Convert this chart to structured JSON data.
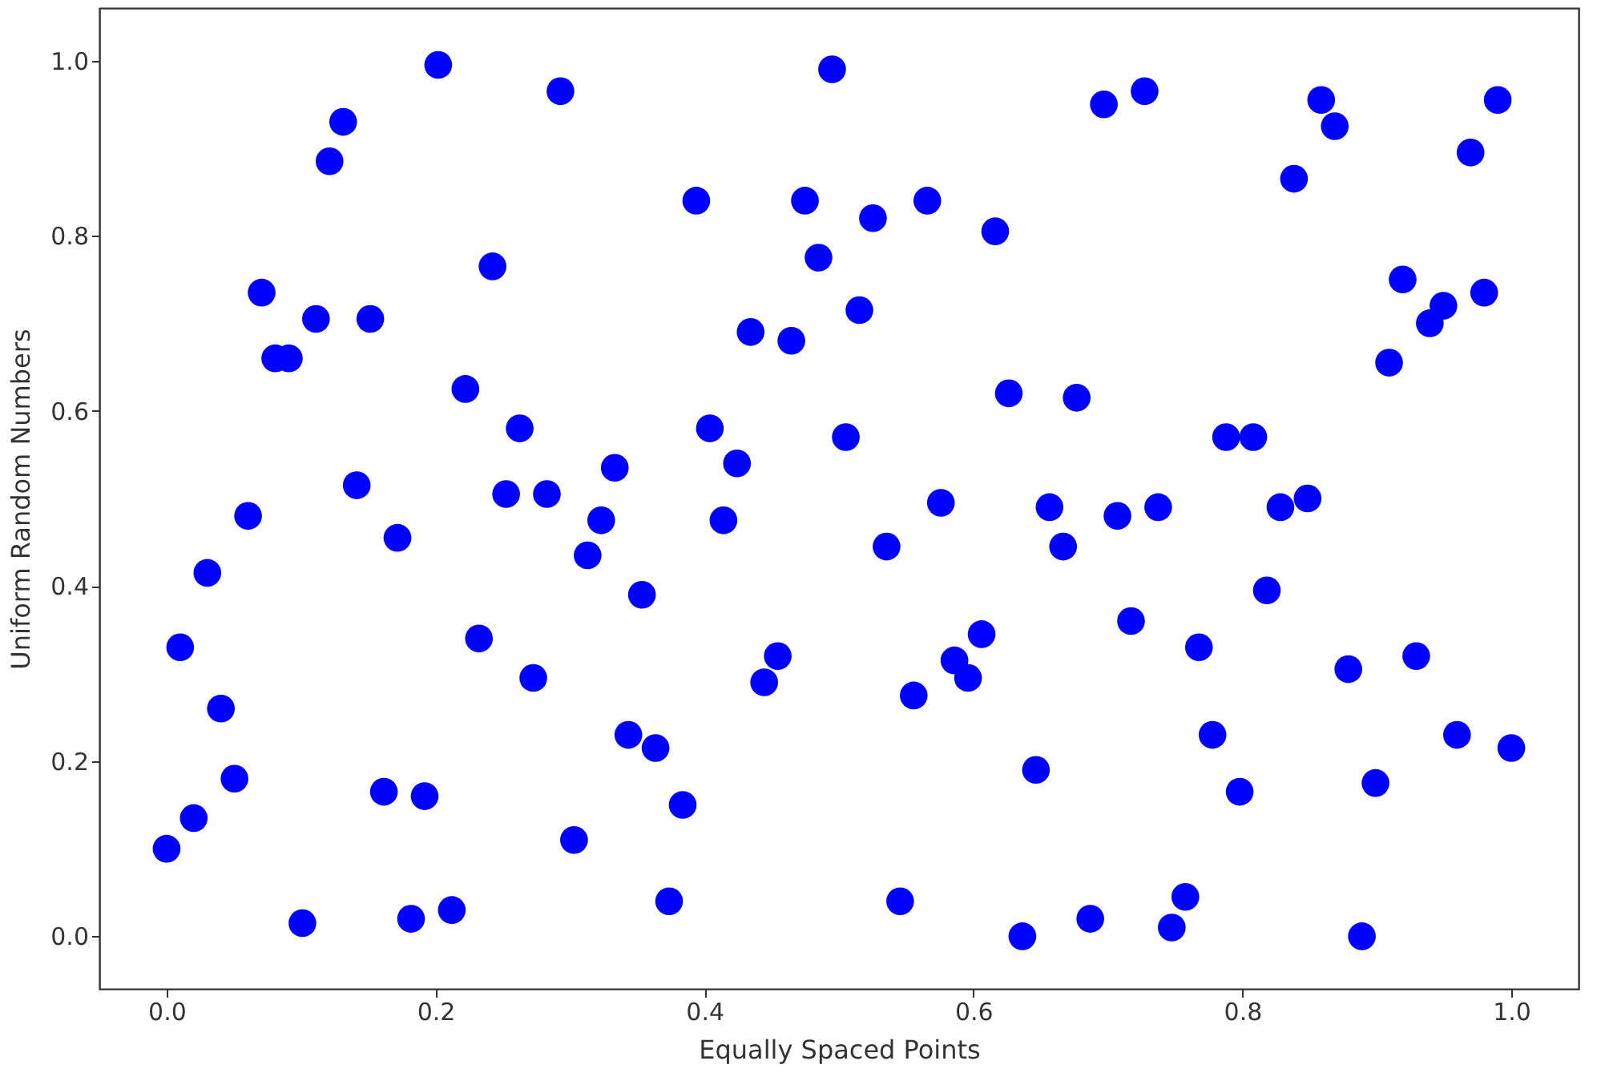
{
  "chart_data": {
    "type": "scatter",
    "xlabel": "Equally Spaced Points",
    "ylabel": "Uniform Random Numbers",
    "x": [
      0.0,
      0.0101,
      0.0202,
      0.0303,
      0.0404,
      0.0505,
      0.0606,
      0.0707,
      0.0808,
      0.0909,
      0.101,
      0.1111,
      0.1212,
      0.1313,
      0.1414,
      0.1515,
      0.1616,
      0.1717,
      0.1818,
      0.1919,
      0.202,
      0.2121,
      0.2222,
      0.2323,
      0.2424,
      0.2525,
      0.2626,
      0.2727,
      0.2828,
      0.2929,
      0.303,
      0.3131,
      0.3232,
      0.3333,
      0.3434,
      0.3535,
      0.3636,
      0.3737,
      0.3838,
      0.3939,
      0.404,
      0.4141,
      0.4242,
      0.4343,
      0.4444,
      0.4545,
      0.4646,
      0.4747,
      0.4848,
      0.4949,
      0.5051,
      0.5152,
      0.5253,
      0.5354,
      0.5455,
      0.5556,
      0.5657,
      0.5758,
      0.5859,
      0.596,
      0.6061,
      0.6162,
      0.6263,
      0.6364,
      0.6465,
      0.6566,
      0.6667,
      0.6768,
      0.6869,
      0.697,
      0.7071,
      0.7172,
      0.7273,
      0.7374,
      0.7475,
      0.7576,
      0.7677,
      0.7778,
      0.7879,
      0.798,
      0.8081,
      0.8182,
      0.8283,
      0.8384,
      0.8485,
      0.8586,
      0.8687,
      0.8788,
      0.8889,
      0.899,
      0.9091,
      0.9192,
      0.9293,
      0.9394,
      0.9495,
      0.9596,
      0.9697,
      0.9798,
      0.9899,
      1.0
    ],
    "series": [
      {
        "color": "#0000ff",
        "values": [
          0.1,
          0.33,
          0.135,
          0.415,
          0.26,
          0.18,
          0.48,
          0.735,
          0.66,
          0.66,
          0.015,
          0.705,
          0.885,
          0.93,
          0.515,
          0.705,
          0.165,
          0.455,
          0.02,
          0.16,
          0.995,
          0.03,
          0.625,
          0.34,
          0.765,
          0.505,
          0.58,
          0.295,
          0.505,
          0.965,
          0.11,
          0.435,
          0.475,
          0.535,
          0.23,
          0.39,
          0.215,
          0.04,
          0.15,
          0.84,
          0.58,
          0.475,
          0.54,
          0.69,
          0.29,
          0.32,
          0.68,
          0.84,
          0.775,
          0.99,
          0.57,
          0.715,
          0.82,
          0.445,
          0.04,
          0.275,
          0.84,
          0.495,
          0.315,
          0.295,
          0.345,
          0.805,
          0.62,
          0.0,
          0.19,
          0.49,
          0.445,
          0.615,
          0.02,
          0.95,
          0.48,
          0.36,
          0.965,
          0.49,
          0.01,
          0.045,
          0.33,
          0.23,
          0.57,
          0.165,
          0.57,
          0.395,
          0.49,
          0.865,
          0.5,
          0.955,
          0.925,
          0.305,
          0.0,
          0.175,
          0.655,
          0.75,
          0.32,
          0.7,
          0.72,
          0.23,
          0.895,
          0.735,
          0.955,
          0.215
        ]
      }
    ],
    "xlim": [
      -0.05,
      1.05
    ],
    "ylim": [
      -0.06,
      1.06
    ],
    "xticks": [
      {
        "value": 0,
        "label": "0.0"
      },
      {
        "value": 0.2,
        "label": "0.2"
      },
      {
        "value": 0.4,
        "label": "0.4"
      },
      {
        "value": 0.6,
        "label": "0.6"
      },
      {
        "value": 0.8,
        "label": "0.8"
      },
      {
        "value": 1,
        "label": "1.0"
      }
    ],
    "yticks": [
      {
        "value": 0,
        "label": "0.0"
      },
      {
        "value": 0.2,
        "label": "0.2"
      },
      {
        "value": 0.4,
        "label": "0.4"
      },
      {
        "value": 0.6,
        "label": "0.6"
      },
      {
        "value": 0.8,
        "label": "0.8"
      },
      {
        "value": 1,
        "label": "1.0"
      }
    ],
    "marker": "circle",
    "grid": false,
    "legend": false
  }
}
